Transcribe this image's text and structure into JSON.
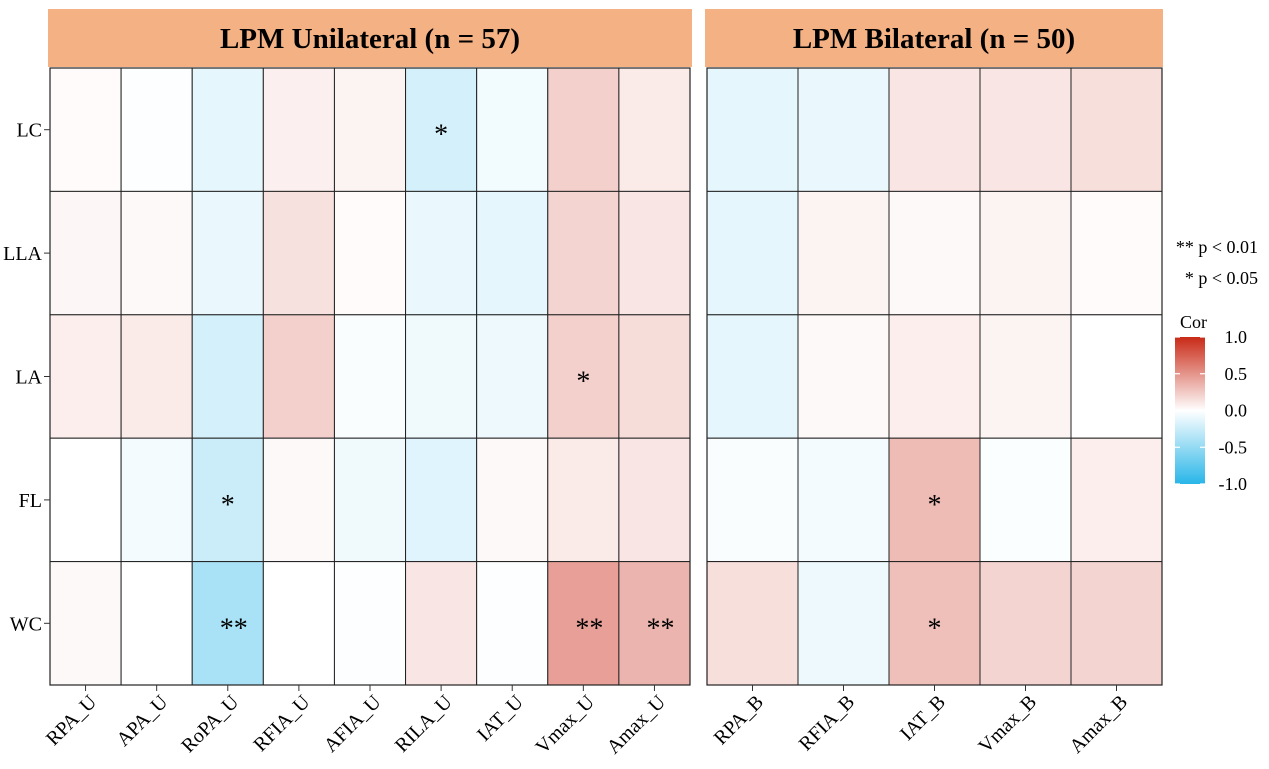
{
  "chart_data": {
    "type": "heatmap",
    "legend": {
      "title": "Cor",
      "ticks": [
        "1.0",
        "0.5",
        "0.0",
        "-0.5",
        "-1.0"
      ],
      "tick_values": [
        1.0,
        0.5,
        0.0,
        -0.5,
        -1.0
      ],
      "range": [
        -1.0,
        1.0
      ],
      "colors": {
        "low": "#29b6e8",
        "mid": "#ffffff",
        "high": "#c92a17"
      },
      "placement": "right"
    },
    "significance_note": [
      "** p < 0.01",
      "* p < 0.05"
    ],
    "rows": [
      "LC",
      "LLA",
      "LA",
      "FL",
      "WC"
    ],
    "panels": [
      {
        "title": "LPM Unilateral (n = 57)",
        "strip_color": "#f4b183",
        "columns": [
          "RPA_U",
          "APA_U",
          "RoPA_U",
          "RFIA_U",
          "AFIA_U",
          "RILA_U",
          "IAT_U",
          "Vmax_U",
          "Amax_U"
        ],
        "values": [
          [
            0.02,
            -0.01,
            -0.12,
            0.07,
            0.05,
            -0.2,
            -0.06,
            0.22,
            0.1
          ],
          [
            0.04,
            0.03,
            -0.1,
            0.14,
            0.02,
            -0.1,
            -0.12,
            0.2,
            0.12
          ],
          [
            0.08,
            0.1,
            -0.2,
            0.22,
            -0.03,
            -0.07,
            -0.08,
            0.22,
            0.16
          ],
          [
            0.0,
            -0.05,
            -0.25,
            0.03,
            -0.07,
            -0.15,
            0.03,
            0.1,
            0.12
          ],
          [
            0.03,
            0.0,
            -0.4,
            0.0,
            -0.01,
            0.12,
            -0.01,
            0.45,
            0.35
          ]
        ],
        "sig": [
          [
            "",
            "",
            "",
            "",
            "",
            "*",
            "",
            "",
            ""
          ],
          [
            "",
            "",
            "",
            "",
            "",
            "",
            "",
            "",
            ""
          ],
          [
            "",
            "",
            "",
            "",
            "",
            "",
            "",
            "*",
            ""
          ],
          [
            "",
            "",
            "*",
            "",
            "",
            "",
            "",
            "",
            ""
          ],
          [
            "",
            "",
            "**",
            "",
            "",
            "",
            "",
            "**",
            "**"
          ]
        ]
      },
      {
        "title": "LPM Bilateral (n = 50)",
        "strip_color": "#f4b183",
        "columns": [
          "RPA_B",
          "RFIA_B",
          "IAT_B",
          "Vmax_B",
          "Amax_B"
        ],
        "values": [
          [
            -0.12,
            -0.1,
            0.12,
            0.12,
            0.15
          ],
          [
            -0.12,
            0.05,
            0.03,
            0.05,
            0.02
          ],
          [
            -0.12,
            0.03,
            0.08,
            0.05,
            0.0
          ],
          [
            -0.03,
            -0.05,
            0.32,
            -0.02,
            0.08
          ],
          [
            0.15,
            -0.08,
            0.3,
            0.2,
            0.2
          ]
        ],
        "sig": [
          [
            "",
            "",
            "",
            "",
            ""
          ],
          [
            "",
            "",
            "",
            "",
            ""
          ],
          [
            "",
            "",
            "",
            "",
            ""
          ],
          [
            "",
            "",
            "*",
            "",
            ""
          ],
          [
            "",
            "",
            "*",
            "",
            ""
          ]
        ]
      }
    ]
  }
}
